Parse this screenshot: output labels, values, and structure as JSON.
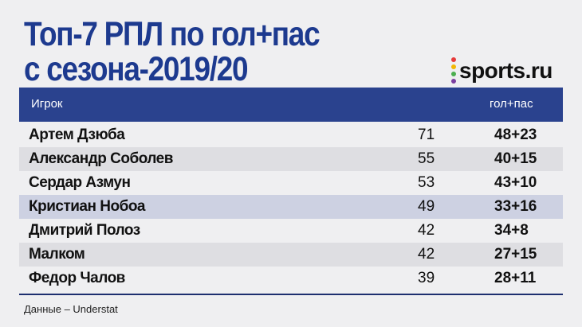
{
  "title": {
    "line1": "Топ-7 РПЛ по гол+пас",
    "line2": "с сезона-2019/20"
  },
  "logo": {
    "text": "sports.ru",
    "dot_colors": [
      "#e63b3b",
      "#f2b705",
      "#4caf50",
      "#7b3fa0"
    ]
  },
  "table": {
    "headers": {
      "player": "Игрок",
      "stat": "гол+пас"
    },
    "rows": [
      {
        "name": "Артем Дзюба",
        "total": "71",
        "ga": "48+23"
      },
      {
        "name": "Александр Соболев",
        "total": "55",
        "ga": "40+15"
      },
      {
        "name": "Сердар Азмун",
        "total": "53",
        "ga": "43+10"
      },
      {
        "name": "Кристиан Нобоа",
        "total": "49",
        "ga": "33+16"
      },
      {
        "name": "Дмитрий Полоз",
        "total": "42",
        "ga": "34+8"
      },
      {
        "name": "Малком",
        "total": "42",
        "ga": "27+15"
      },
      {
        "name": "Федор Чалов",
        "total": "39",
        "ga": "28+11"
      }
    ]
  },
  "source": "Данные – Understat"
}
